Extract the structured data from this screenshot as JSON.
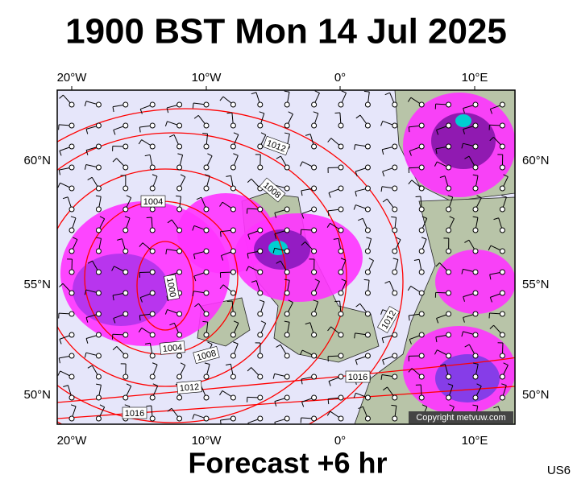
{
  "title": "1900 BST Mon 14 Jul 2025",
  "axes": {
    "top": [
      "20°W",
      "10°W",
      "0°",
      "10°E"
    ],
    "bottom": [
      "20°W",
      "10°W",
      "0°",
      "10°E"
    ],
    "left": [
      "60°N",
      "55°N",
      "50°N"
    ],
    "right": [
      "60°N",
      "55°N",
      "50°N"
    ]
  },
  "isobar_labels": [
    "1012",
    "1008",
    "1004",
    "1000",
    "1004",
    "1008",
    "1012",
    "1016",
    "1012",
    "1016"
  ],
  "copyright": "Copyright metvuw.com",
  "footer": "Forecast +6 hr",
  "code": "US6"
}
